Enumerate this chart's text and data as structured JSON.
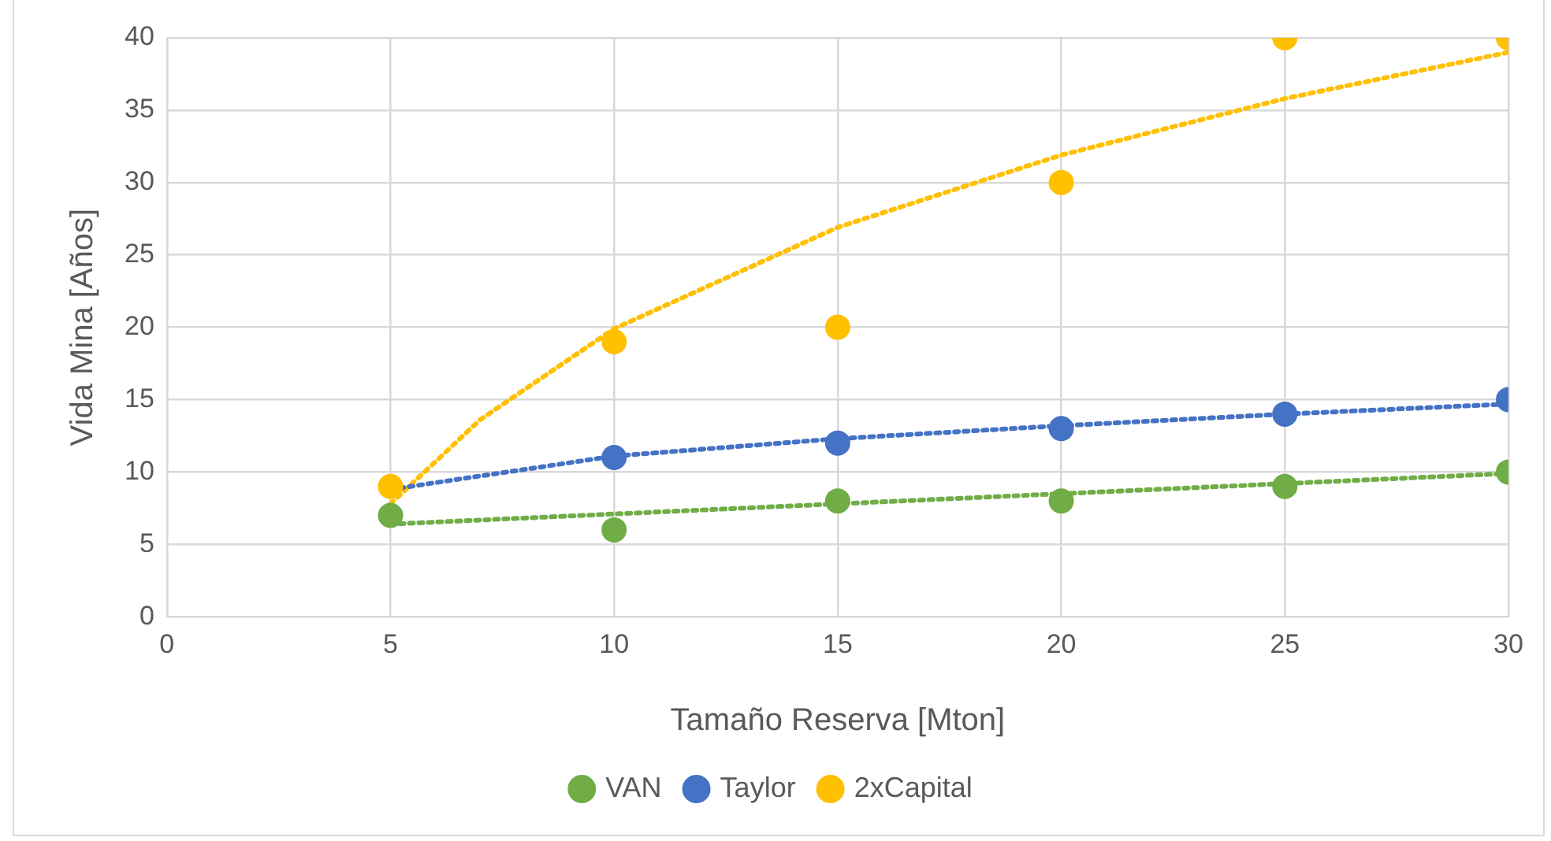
{
  "chart_data": {
    "type": "scatter",
    "xlabel": "Tamaño Reserva [Mton]",
    "ylabel": "Vida Mina [Años]",
    "xlim": [
      0,
      30
    ],
    "xticks": [
      0,
      5,
      10,
      15,
      20,
      25,
      30
    ],
    "ylim": [
      0,
      40
    ],
    "yticks": [
      0,
      5,
      10,
      15,
      20,
      25,
      30,
      35,
      40
    ],
    "grid": true,
    "legend": "bottom",
    "marker": "circle",
    "x": [
      5,
      10,
      15,
      20,
      25,
      30
    ],
    "series": [
      {
        "name": "VAN",
        "color": "#70ad47",
        "values": [
          7,
          6,
          8,
          8,
          9,
          10
        ]
      },
      {
        "name": "Taylor",
        "color": "#4472c4",
        "values": [
          null,
          11,
          12,
          13,
          14,
          15
        ]
      },
      {
        "name": "2xCapital",
        "color": "#ffc000",
        "values": [
          9,
          19,
          20,
          30,
          40,
          40
        ]
      },
      {
        "type": "line",
        "color": "#70ad47",
        "x": [
          5,
          30
        ],
        "values": [
          6.4,
          9.9
        ],
        "marker": "none",
        "line_style": "dotted"
      },
      {
        "type": "line",
        "color": "#4472c4",
        "x": [
          5,
          10,
          15,
          20,
          25,
          30
        ],
        "values": [
          8.8,
          11.1,
          12.3,
          13.2,
          14,
          14.7
        ],
        "marker": "none",
        "line_style": "dotted"
      },
      {
        "type": "line",
        "color": "#ffc000",
        "x": [
          5,
          7,
          10,
          15,
          20,
          25,
          30
        ],
        "values": [
          7.8,
          13.6,
          19.9,
          26.9,
          31.9,
          35.8,
          39
        ],
        "marker": "none",
        "line_style": "dotted"
      }
    ]
  }
}
